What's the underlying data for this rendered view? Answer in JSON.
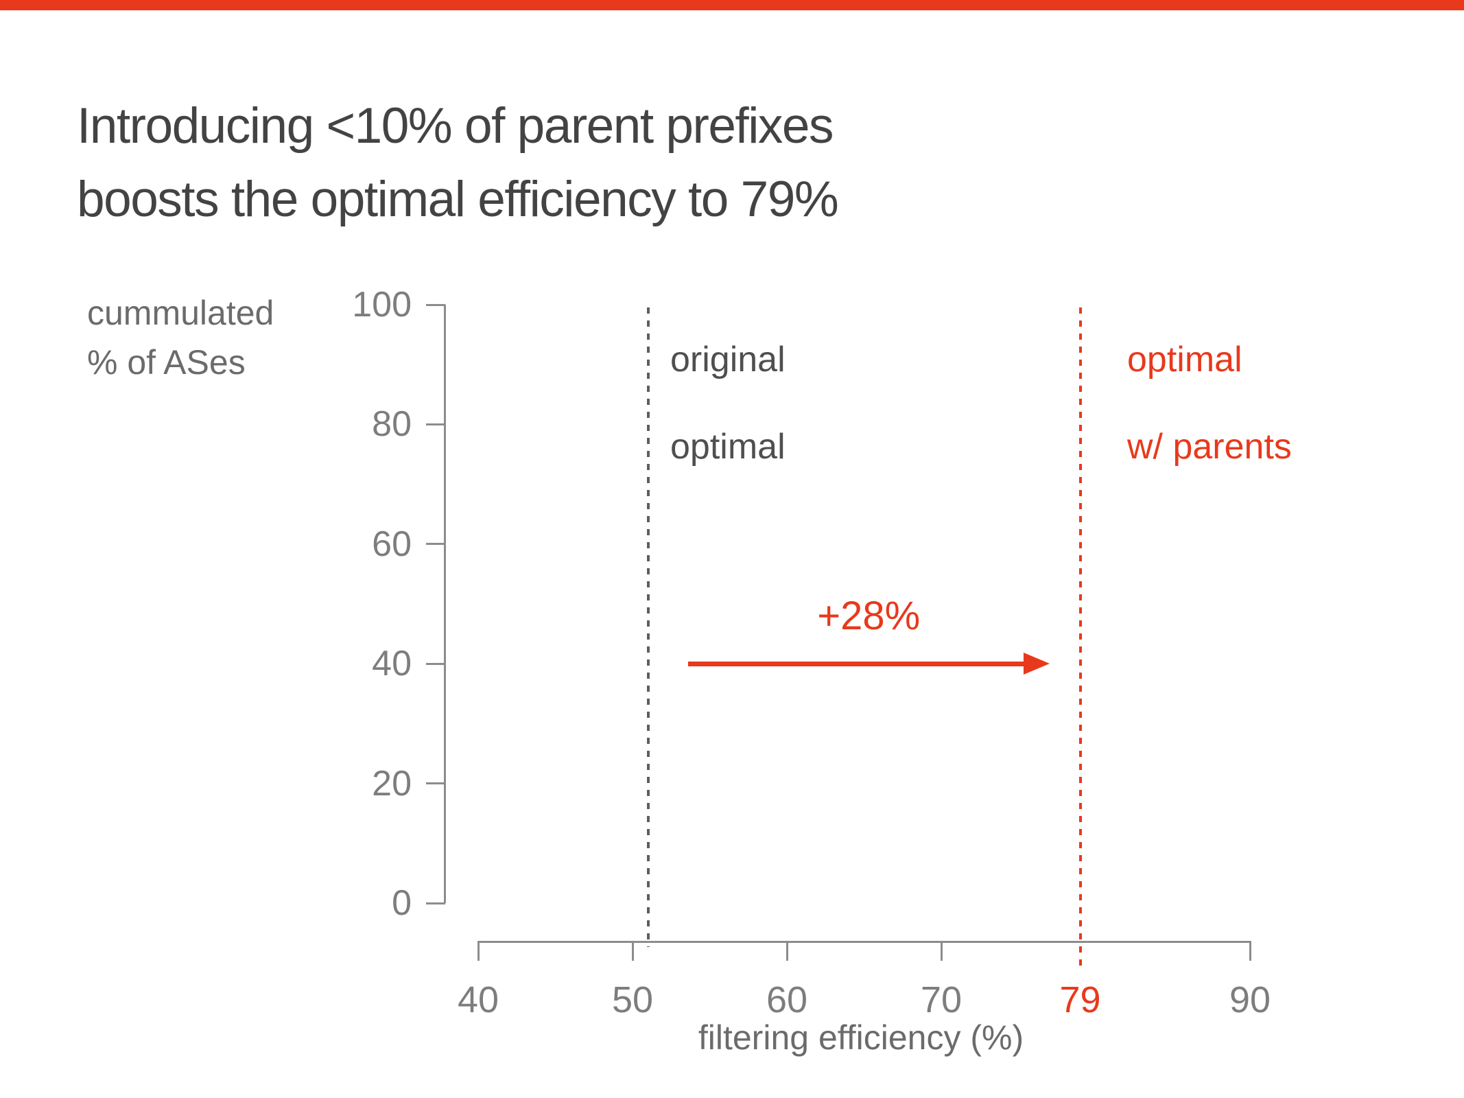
{
  "slide": {
    "accent_color": "#e8391c",
    "title_lines": [
      "Introducing <10% of parent prefixes",
      "boosts the optimal efficiency to 79%"
    ]
  },
  "chart": {
    "y_axis": {
      "title_lines": [
        "cummulated",
        "% of ASes"
      ],
      "ticks": [
        100,
        80,
        60,
        40,
        20,
        0
      ]
    },
    "x_axis": {
      "title": "filtering efficiency (%)",
      "ticks": [
        {
          "v": 40
        },
        {
          "v": 50
        },
        {
          "v": 60
        },
        {
          "v": 70
        },
        {
          "v": 79,
          "accent": true,
          "line_tick": false
        },
        {
          "v": 90
        }
      ]
    },
    "markers": [
      {
        "id": "original-optimal",
        "x": 51,
        "style": "gray-dotted",
        "label_lines": [
          "original",
          "optimal"
        ]
      },
      {
        "id": "optimal-with-parents",
        "x": 79,
        "style": "accent-dotted",
        "label_lines": [
          "optimal",
          "w/ parents"
        ]
      }
    ],
    "arrow": {
      "label": "+28%",
      "x_from": 53.6,
      "x_to": 77,
      "y": 40
    }
  },
  "chart_data": {
    "type": "line",
    "title": "Introducing <10% of parent prefixes boosts the optimal efficiency to 79%",
    "xlabel": "filtering efficiency (%)",
    "ylabel": "cummulated % of ASes",
    "xlim": [
      40,
      90
    ],
    "ylim": [
      0,
      100
    ],
    "x_ticks": [
      40,
      50,
      60,
      70,
      79,
      90
    ],
    "y_ticks": [
      0,
      20,
      40,
      60,
      80,
      100
    ],
    "grid": false,
    "series": [],
    "annotations": [
      {
        "type": "vline",
        "x": 51,
        "line_style": "dotted",
        "color": "#5e5e5e",
        "label": "original optimal"
      },
      {
        "type": "vline",
        "x": 79,
        "line_style": "dotted",
        "color": "#e8391c",
        "label": "optimal w/ parents"
      },
      {
        "type": "arrow",
        "x_from": 53.6,
        "x_to": 77,
        "y": 40,
        "color": "#e8391c",
        "label": "+28%"
      }
    ]
  }
}
